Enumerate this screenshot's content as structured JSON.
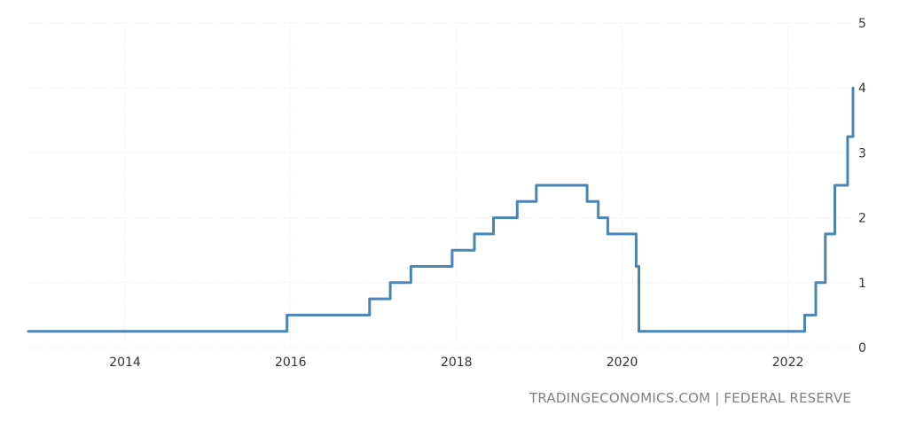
{
  "source_label": "TRADINGECONOMICS.COM | FEDERAL RESERVE",
  "colors": {
    "line": "#4a86b5",
    "grid": "#e6e6e6",
    "text": "#333333",
    "source": "#808080"
  },
  "chart_data": {
    "type": "line",
    "title": "",
    "xlabel": "",
    "ylabel": "",
    "x_axis": "date",
    "xlim": [
      "2012-11-01",
      "2022-10-15"
    ],
    "ylim": [
      0,
      5
    ],
    "x_ticks": [
      "2014",
      "2016",
      "2018",
      "2020",
      "2022"
    ],
    "y_ticks": [
      "0",
      "1",
      "2",
      "3",
      "4",
      "5"
    ],
    "grid": true,
    "legend": "none",
    "y_axis_side": "right",
    "series": [
      {
        "step": true,
        "points": [
          {
            "x": "2012-11-01",
            "y": 0.25
          },
          {
            "x": "2015-12-16",
            "y": 0.5
          },
          {
            "x": "2016-12-14",
            "y": 0.75
          },
          {
            "x": "2017-03-15",
            "y": 1.0
          },
          {
            "x": "2017-06-14",
            "y": 1.25
          },
          {
            "x": "2017-12-13",
            "y": 1.5
          },
          {
            "x": "2018-03-21",
            "y": 1.75
          },
          {
            "x": "2018-06-13",
            "y": 2.0
          },
          {
            "x": "2018-09-26",
            "y": 2.25
          },
          {
            "x": "2018-12-19",
            "y": 2.5
          },
          {
            "x": "2019-07-31",
            "y": 2.25
          },
          {
            "x": "2019-09-18",
            "y": 2.0
          },
          {
            "x": "2019-10-30",
            "y": 1.75
          },
          {
            "x": "2020-03-03",
            "y": 1.25
          },
          {
            "x": "2020-03-15",
            "y": 0.25
          },
          {
            "x": "2022-03-16",
            "y": 0.5
          },
          {
            "x": "2022-05-04",
            "y": 1.0
          },
          {
            "x": "2022-06-15",
            "y": 1.75
          },
          {
            "x": "2022-07-27",
            "y": 2.5
          },
          {
            "x": "2022-09-21",
            "y": 3.25
          },
          {
            "x": "2022-10-15",
            "y": 4.0
          }
        ]
      }
    ]
  }
}
